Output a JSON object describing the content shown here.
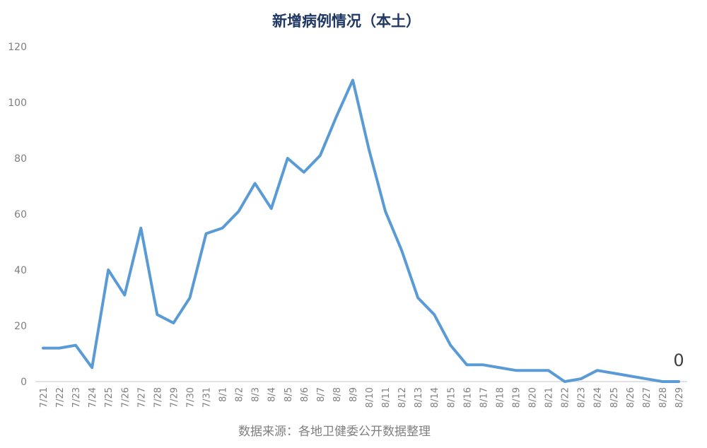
{
  "chart_data": {
    "type": "line",
    "title": "新增病例情况（本土）",
    "source": "数据来源：各地卫健委公开数据整理",
    "x": [
      "7/21",
      "7/22",
      "7/23",
      "7/24",
      "7/25",
      "7/26",
      "7/27",
      "7/28",
      "7/29",
      "7/30",
      "7/31",
      "8/1",
      "8/2",
      "8/3",
      "8/4",
      "8/5",
      "8/6",
      "8/7",
      "8/8",
      "8/9",
      "8/10",
      "8/11",
      "8/12",
      "8/13",
      "8/14",
      "8/15",
      "8/16",
      "8/17",
      "8/18",
      "8/19",
      "8/20",
      "8/21",
      "8/22",
      "8/23",
      "8/24",
      "8/25",
      "8/26",
      "8/27",
      "8/28",
      "8/29"
    ],
    "series": [
      {
        "values": [
          12,
          12,
          13,
          5,
          40,
          31,
          55,
          24,
          21,
          30,
          53,
          55,
          61,
          71,
          62,
          80,
          75,
          81,
          95,
          108,
          83,
          61,
          47,
          30,
          24,
          13,
          6,
          6,
          5,
          4,
          4,
          4,
          0,
          1,
          4,
          3,
          2,
          1,
          0,
          0
        ]
      }
    ],
    "ylim": [
      0,
      120
    ],
    "yticks": [
      "0",
      "20",
      "40",
      "60",
      "80",
      "100",
      "120"
    ],
    "grid": false,
    "annotation": "0",
    "colors": {
      "line": "#5b9bd5",
      "title": "#1f3864",
      "axis_text": "#7f7f7f",
      "source": "#7f7f7f"
    }
  }
}
